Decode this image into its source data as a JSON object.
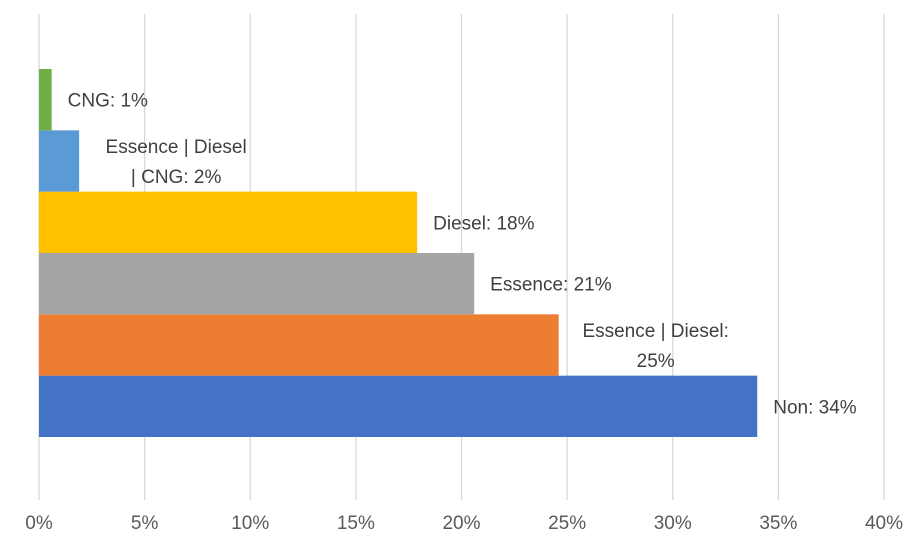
{
  "chart_data": {
    "type": "bar",
    "orientation": "horizontal",
    "title": "",
    "xlabel": "",
    "ylabel": "",
    "xlim": [
      0,
      40
    ],
    "x_ticks": [
      0,
      5,
      10,
      15,
      20,
      25,
      30,
      35,
      40
    ],
    "x_tick_labels": [
      "0%",
      "5%",
      "10%",
      "15%",
      "20%",
      "25%",
      "30%",
      "35%",
      "40%"
    ],
    "grid": "vertical",
    "legend": "none",
    "bars": [
      {
        "category": "Non",
        "value": 34,
        "color": "#4472C4",
        "label_lines": [
          "Non: 34%"
        ]
      },
      {
        "category": "Essence | Diesel",
        "value": 24.6,
        "color": "#ED7D31",
        "label_lines": [
          "Essence | Diesel:",
          "25%"
        ]
      },
      {
        "category": "Essence",
        "value": 20.6,
        "color": "#A5A5A5",
        "label_lines": [
          "Essence: 21%"
        ]
      },
      {
        "category": "Diesel",
        "value": 17.9,
        "color": "#FFC000",
        "label_lines": [
          "Diesel: 18%"
        ]
      },
      {
        "category": "Essence | Diesel | CNG",
        "value": 1.9,
        "color": "#5B9BD5",
        "label_lines": [
          "Essence | Diesel",
          "| CNG: 2%"
        ]
      },
      {
        "category": "CNG",
        "value": 0.6,
        "color": "#70AD47",
        "label_lines": [
          "CNG: 1%"
        ]
      }
    ]
  }
}
